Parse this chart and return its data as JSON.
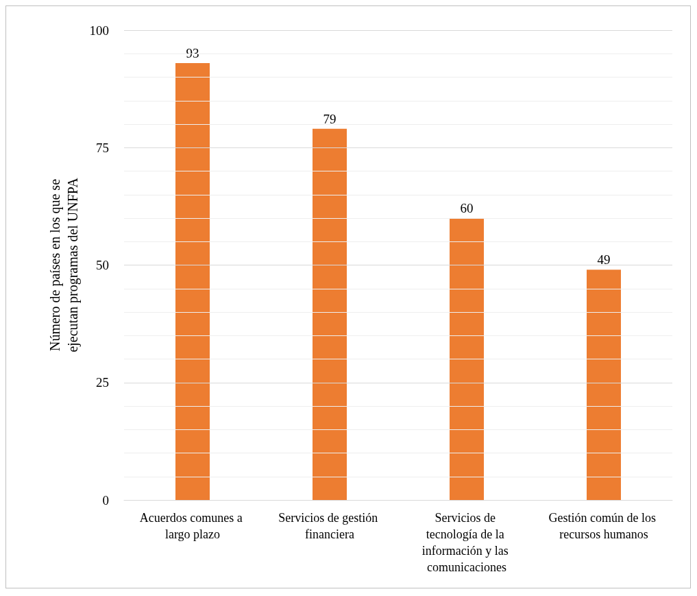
{
  "chart_data": {
    "type": "bar",
    "ylabel": "Número de países en los que se\nejecutan programas del UNFPA",
    "categories": [
      "Acuerdos comunes a largo plazo",
      "Servicios de gestión financiera",
      "Servicios de tecnología de la información y las comunicaciones",
      "Gestión común de los recursos humanos"
    ],
    "values": [
      93,
      79,
      60,
      49
    ],
    "color": "#ed7d31",
    "data_labels": true,
    "ylim": [
      0,
      100
    ],
    "yticks": [
      0,
      {
        "value": 5,
        "label": null
      },
      {
        "value": 10,
        "label": null
      },
      {
        "value": 15,
        "label": null
      },
      {
        "value": 20,
        "label": null
      },
      25,
      {
        "value": 30,
        "label": null
      },
      {
        "value": 35,
        "label": null
      },
      {
        "value": 40,
        "label": null
      },
      {
        "value": 45,
        "label": null
      },
      50,
      {
        "value": 55,
        "label": null
      },
      {
        "value": 60,
        "label": null
      },
      {
        "value": 65,
        "label": null
      },
      {
        "value": 70,
        "label": null
      },
      75,
      {
        "value": 80,
        "label": null
      },
      {
        "value": 85,
        "label": null
      },
      {
        "value": 90,
        "label": null
      },
      {
        "value": 95,
        "label": null
      },
      100
    ],
    "grid": true
  }
}
